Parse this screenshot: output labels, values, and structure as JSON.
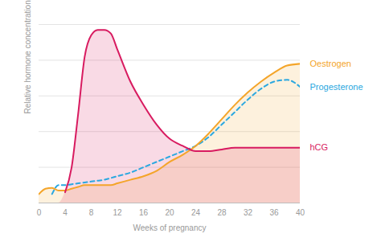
{
  "chart_data": {
    "type": "line",
    "x_label": "Weeks of pregnancy",
    "y_label": "Relative hormone concentration",
    "x": [
      0,
      1,
      2,
      3,
      4,
      5,
      6,
      7,
      8,
      9,
      10,
      11,
      12,
      14,
      16,
      18,
      20,
      22,
      24,
      26,
      28,
      30,
      32,
      34,
      36,
      38,
      40
    ],
    "series": [
      {
        "name": "Oestrogen",
        "color": "#f4a52a",
        "type": "area",
        "line_style": "solid",
        "values": [
          5,
          8,
          8.5,
          7,
          7,
          8,
          9,
          10,
          10,
          10,
          10,
          10,
          11,
          13,
          15,
          18,
          23,
          27,
          32,
          39,
          47,
          55,
          62,
          68,
          73,
          77,
          78
        ]
      },
      {
        "name": "Progesterone",
        "color": "#2ba8e0",
        "type": "line",
        "line_style": "dashed",
        "values": [
          null,
          null,
          5,
          10,
          10,
          10.5,
          11,
          11.5,
          12,
          12.5,
          13,
          14,
          15,
          17,
          20,
          23,
          26,
          29,
          32,
          37,
          44,
          51,
          58,
          64,
          68,
          69,
          65
        ]
      },
      {
        "name": "hCG",
        "color": "#d81b60",
        "type": "area",
        "line_style": "solid",
        "values": [
          null,
          null,
          null,
          null,
          6,
          20,
          50,
          82,
          94,
          97,
          97,
          95,
          86,
          68,
          55,
          44,
          36,
          32,
          29,
          29,
          30,
          31,
          31,
          31,
          31,
          31,
          31
        ]
      }
    ],
    "xlim": [
      0,
      40
    ],
    "xticks": [
      0,
      4,
      8,
      12,
      16,
      20,
      24,
      28,
      32,
      36,
      40
    ],
    "ylim": [
      0,
      100
    ],
    "yticks": [
      0,
      20,
      40,
      60,
      80,
      100
    ],
    "grid": true,
    "tick_labels": "x",
    "legend": "right"
  }
}
